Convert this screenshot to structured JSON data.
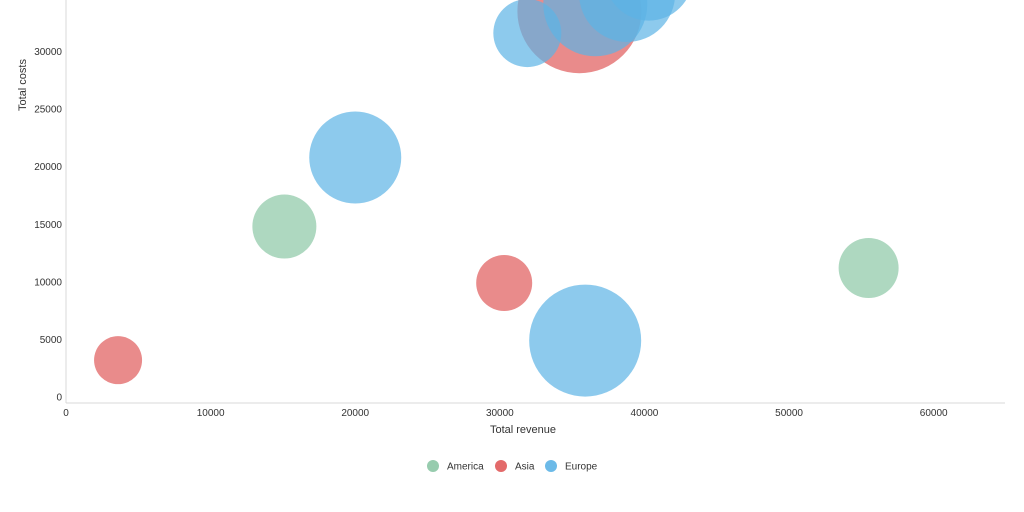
{
  "chart_data": {
    "type": "scatter",
    "subtype": "bubble",
    "title": "",
    "xlabel": "Total revenue",
    "ylabel": "Total costs",
    "xlim": [
      0,
      65000
    ],
    "ylim": [
      0,
      35000
    ],
    "x_ticks": [
      0,
      10000,
      20000,
      30000,
      40000,
      50000,
      60000
    ],
    "y_ticks": [
      0,
      5000,
      10000,
      15000,
      20000,
      25000,
      30000
    ],
    "grid": false,
    "legend_position": "bottom",
    "series": [
      {
        "name": "America",
        "color": "#8cc7a5",
        "points": [
          {
            "x": 15100,
            "y": 14800,
            "size": 32
          },
          {
            "x": 55500,
            "y": 11200,
            "size": 30
          }
        ]
      },
      {
        "name": "Asia",
        "color": "#e05a5a",
        "points": [
          {
            "x": 3600,
            "y": 3200,
            "size": 24
          },
          {
            "x": 30300,
            "y": 9900,
            "size": 28
          },
          {
            "x": 35500,
            "y": 33500,
            "size": 62
          }
        ]
      },
      {
        "name": "Europe",
        "color": "#5cb3e6",
        "points": [
          {
            "x": 20000,
            "y": 20800,
            "size": 46
          },
          {
            "x": 35900,
            "y": 4900,
            "size": 56
          },
          {
            "x": 31900,
            "y": 31600,
            "size": 34
          },
          {
            "x": 36600,
            "y": 34100,
            "size": 52
          },
          {
            "x": 38800,
            "y": 35000,
            "size": 48
          },
          {
            "x": 40300,
            "y": 36500,
            "size": 44
          }
        ]
      }
    ]
  }
}
